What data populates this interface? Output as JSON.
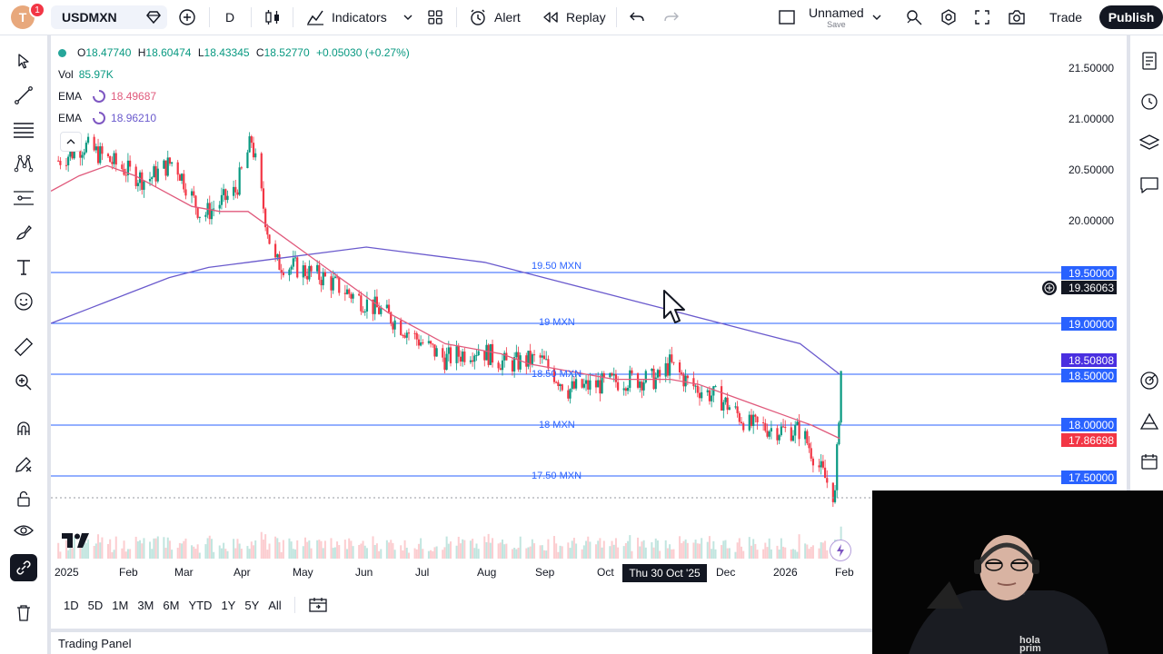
{
  "header": {
    "avatar_letter": "T",
    "notification_count": "1",
    "symbol": "USDMXN",
    "interval": "D",
    "indicators_label": "Indicators",
    "alert_label": "Alert",
    "replay_label": "Replay",
    "layout_name": "Unnamed",
    "layout_status": "Save",
    "trade_label": "Trade",
    "publish_label": "Publish"
  },
  "legend": {
    "ohlc": {
      "o_label": "O",
      "o": "18.47740",
      "h_label": "H",
      "h": "18.60474",
      "l_label": "L",
      "l": "18.43345",
      "c_label": "C",
      "c": "18.52770",
      "change": "+0.05030 (+0.27%)"
    },
    "volume": {
      "label": "Vol",
      "value": "85.97K"
    },
    "ema_fast": {
      "label": "EMA",
      "value": "18.49687",
      "color": "#e05a7c"
    },
    "ema_slow": {
      "label": "EMA",
      "value": "18.96210",
      "color": "#6a5acd"
    }
  },
  "price_axis": {
    "ticks": [
      "21.50000",
      "21.00000",
      "20.50000",
      "20.00000",
      "19.50000",
      "19.00000",
      "18.50000",
      "18.00000",
      "17.50000"
    ],
    "tags": {
      "crosshair": "19.36063",
      "ema_slow": "18.50808",
      "level_18_5": "18.50000",
      "level_19_5": "19.50000",
      "level_19": "19.00000",
      "level_18": "18.00000",
      "ema_fast": "17.86698",
      "level_17_5": "17.50000"
    }
  },
  "horizontal_levels": [
    "19.50 MXN",
    "19 MXN",
    "18.50 MXN",
    "18 MXN",
    "17.50 MXN"
  ],
  "time_axis": {
    "labels": [
      "2025",
      "Feb",
      "Mar",
      "Apr",
      "May",
      "Jun",
      "Jul",
      "Aug",
      "Sep",
      "Oct",
      "Dec",
      "2026",
      "Feb"
    ],
    "crosshair_date": "Thu 30 Oct '25"
  },
  "timeframes": [
    "1D",
    "5D",
    "1M",
    "3M",
    "6M",
    "YTD",
    "1Y",
    "5Y",
    "All"
  ],
  "trading_panel_label": "Trading Panel",
  "webcam": {
    "shirt_text_1": "hola",
    "shirt_text_2": "prim"
  },
  "colors": {
    "up": "#089981",
    "down": "#f23645",
    "level_line": "#2962ff",
    "ema_fast": "#e05a7c",
    "ema_slow": "#6a5acd"
  },
  "chart_data": {
    "type": "candlestick",
    "symbol": "USDMXN",
    "interval": "D",
    "x_range": [
      "2025-01",
      "2026-02"
    ],
    "ylim": [
      17.2,
      21.7
    ],
    "horizontal_levels": [
      19.5,
      19.0,
      18.5,
      18.0,
      17.5
    ],
    "close_series": [
      {
        "date": "2025-01-02",
        "close": 20.6
      },
      {
        "date": "2025-01-15",
        "close": 20.75
      },
      {
        "date": "2025-02-01",
        "close": 20.55
      },
      {
        "date": "2025-02-15",
        "close": 20.4
      },
      {
        "date": "2025-03-01",
        "close": 20.6
      },
      {
        "date": "2025-03-15",
        "close": 20.05
      },
      {
        "date": "2025-04-01",
        "close": 20.3
      },
      {
        "date": "2025-04-09",
        "close": 20.8
      },
      {
        "date": "2025-04-20",
        "close": 19.6
      },
      {
        "date": "2025-05-01",
        "close": 19.55
      },
      {
        "date": "2025-05-15",
        "close": 19.45
      },
      {
        "date": "2025-06-01",
        "close": 19.25
      },
      {
        "date": "2025-06-15",
        "close": 19.1
      },
      {
        "date": "2025-07-01",
        "close": 18.85
      },
      {
        "date": "2025-07-15",
        "close": 18.65
      },
      {
        "date": "2025-08-01",
        "close": 18.75
      },
      {
        "date": "2025-08-15",
        "close": 18.6
      },
      {
        "date": "2025-09-01",
        "close": 18.65
      },
      {
        "date": "2025-09-15",
        "close": 18.35
      },
      {
        "date": "2025-10-01",
        "close": 18.4
      },
      {
        "date": "2025-10-15",
        "close": 18.45
      },
      {
        "date": "2025-10-30",
        "close": 18.45
      },
      {
        "date": "2025-11-05",
        "close": 18.6
      },
      {
        "date": "2025-11-15",
        "close": 18.4
      },
      {
        "date": "2025-12-01",
        "close": 18.25
      },
      {
        "date": "2025-12-15",
        "close": 18.0
      },
      {
        "date": "2026-01-01",
        "close": 17.95
      },
      {
        "date": "2026-01-10",
        "close": 17.95
      },
      {
        "date": "2026-01-20",
        "close": 17.55
      },
      {
        "date": "2026-01-27",
        "close": 17.3
      },
      {
        "date": "2026-01-30",
        "close": 18.53
      }
    ],
    "ema_fast_series": [
      20.3,
      20.45,
      20.55,
      20.45,
      20.3,
      20.15,
      20.1,
      20.1,
      19.9,
      19.7,
      19.5,
      19.3,
      19.1,
      18.95,
      18.8,
      18.75,
      18.7,
      18.6,
      18.55,
      18.5,
      18.45,
      18.45,
      18.45,
      18.4,
      18.3,
      18.2,
      18.1,
      18.0,
      17.87
    ],
    "ema_slow_series": [
      19.0,
      19.15,
      19.3,
      19.45,
      19.55,
      19.6,
      19.65,
      19.7,
      19.75,
      19.7,
      19.65,
      19.6,
      19.5,
      19.4,
      19.3,
      19.2,
      19.1,
      19.0,
      18.9,
      18.8,
      18.5
    ],
    "last_ohlc": {
      "o": 18.4774,
      "h": 18.60474,
      "l": 18.43345,
      "c": 18.5277
    }
  }
}
